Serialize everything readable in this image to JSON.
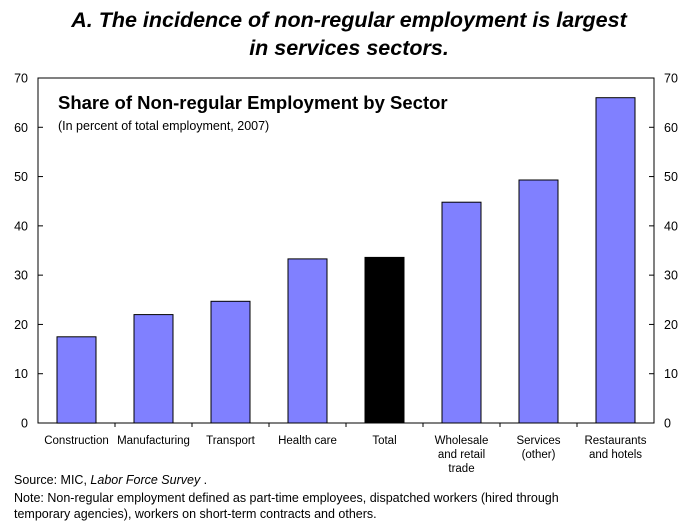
{
  "heading": {
    "line1": "A. The incidence of non-regular employment is largest",
    "line2": "in services sectors."
  },
  "chart_data": {
    "type": "bar",
    "title": "Share of Non-regular Employment by Sector",
    "subtitle": "(In percent of total employment, 2007)",
    "categories": [
      [
        "Construction"
      ],
      [
        "Manufacturing"
      ],
      [
        "Transport"
      ],
      [
        "Health care"
      ],
      [
        "Total"
      ],
      [
        "Wholesale",
        "and retail",
        "trade"
      ],
      [
        "Services",
        "(other)"
      ],
      [
        "Restaurants",
        "and hotels"
      ]
    ],
    "values": [
      17.5,
      22,
      24.7,
      33.3,
      33.6,
      44.8,
      49.3,
      66
    ],
    "ylim": [
      0,
      70
    ],
    "yticks": [
      0,
      10,
      20,
      30,
      40,
      50,
      60,
      70
    ],
    "right_axis": true,
    "grid": false,
    "colors": {
      "bar": "#8080ff",
      "highlight": "#000000",
      "highlight_category": "Total"
    }
  },
  "footer": {
    "source_prefix": "Source: MIC, ",
    "source_title": "Labor Force Survey",
    "source_suffix": " .",
    "note_line1": "Note: Non-regular employment defined as part-time employees, dispatched workers (hired through",
    "note_line2": "temporary agencies), workers on short-term contracts and others."
  }
}
